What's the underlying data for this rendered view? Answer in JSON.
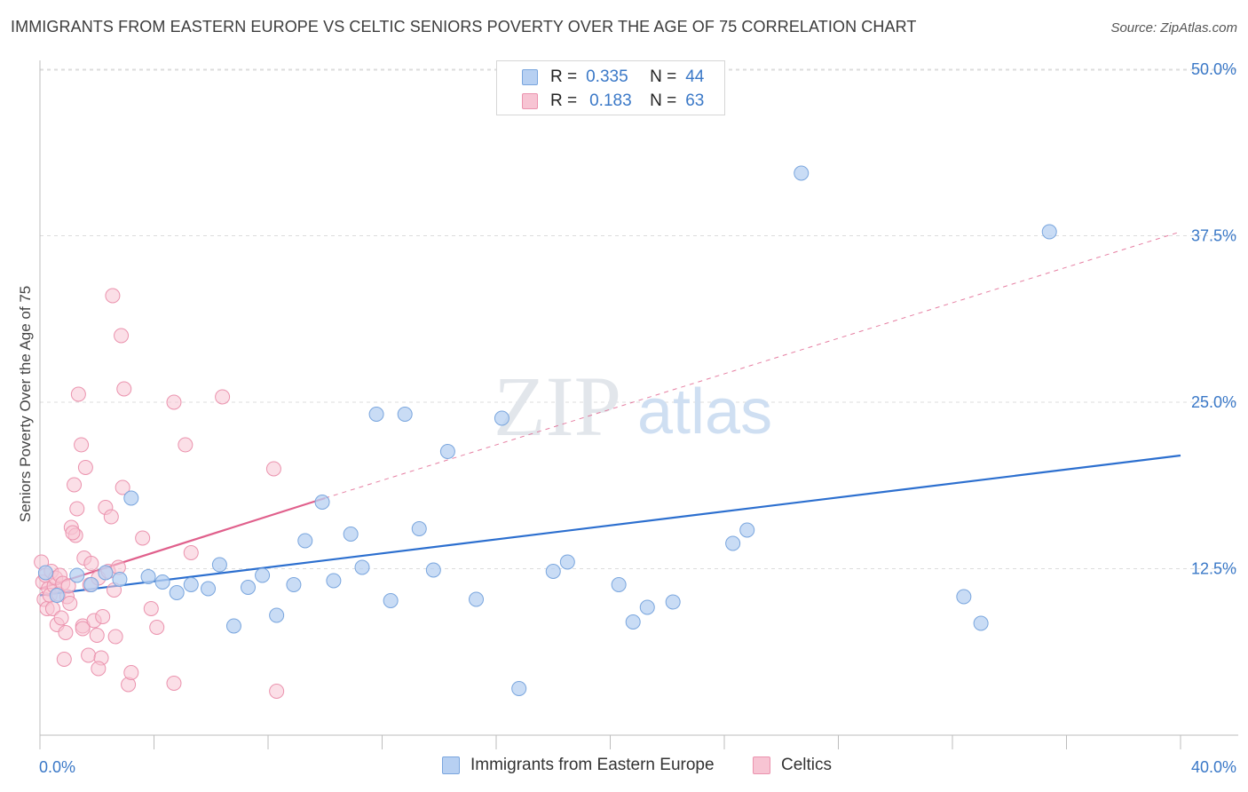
{
  "title": "IMMIGRANTS FROM EASTERN EUROPE VS CELTIC SENIORS POVERTY OVER THE AGE OF 75 CORRELATION CHART",
  "source": "Source: ZipAtlas.com",
  "watermark": {
    "zip": "ZIP",
    "atlas": "atlas"
  },
  "legend": {
    "r_label": "R =",
    "n_label": "N =",
    "rows": [
      {
        "r": "0.335",
        "n": "44"
      },
      {
        "r": "0.183",
        "n": "63"
      }
    ]
  },
  "colors": {
    "blue_fill": "#b7d0f2",
    "blue_stroke": "#7aa6de",
    "blue_line": "#2c6fcf",
    "pink_fill": "#f7c4d3",
    "pink_stroke": "#eb93ae",
    "pink_line": "#e0608c",
    "tick_text": "#3a78c7"
  },
  "chart_data": {
    "type": "scatter",
    "title": "IMMIGRANTS FROM EASTERN EUROPE VS CELTIC SENIORS POVERTY OVER THE AGE OF 75 CORRELATION CHART",
    "xlabel": "",
    "ylabel": "Seniors Poverty Over the Age of 75",
    "xlim": [
      0,
      40
    ],
    "ylim": [
      0,
      52
    ],
    "x_tick_labels": {
      "min": "0.0%",
      "max": "40.0%"
    },
    "y_ticks": [
      {
        "value": 12.5,
        "label": "12.5%"
      },
      {
        "value": 25.0,
        "label": "25.0%"
      },
      {
        "value": 37.5,
        "label": "37.5%"
      },
      {
        "value": 50.0,
        "label": "50.0%"
      }
    ],
    "grid": true,
    "legend_position": "top-center",
    "series": [
      {
        "name": "Immigrants from Eastern Europe",
        "color": "blue",
        "R": 0.335,
        "N": 44,
        "trend": {
          "x0": 0,
          "y0": 10.5,
          "x1": 40,
          "y1": 21.0
        },
        "points": [
          [
            0.2,
            12.2
          ],
          [
            0.6,
            10.5
          ],
          [
            1.3,
            12.0
          ],
          [
            1.8,
            11.3
          ],
          [
            2.3,
            12.2
          ],
          [
            2.8,
            11.7
          ],
          [
            3.2,
            17.8
          ],
          [
            3.8,
            11.9
          ],
          [
            4.3,
            11.5
          ],
          [
            4.8,
            10.7
          ],
          [
            5.3,
            11.3
          ],
          [
            5.9,
            11.0
          ],
          [
            6.3,
            12.8
          ],
          [
            6.8,
            8.2
          ],
          [
            7.3,
            11.1
          ],
          [
            7.8,
            12.0
          ],
          [
            8.3,
            9.0
          ],
          [
            8.9,
            11.3
          ],
          [
            9.3,
            14.6
          ],
          [
            9.9,
            17.5
          ],
          [
            10.3,
            11.6
          ],
          [
            10.9,
            15.1
          ],
          [
            11.3,
            12.6
          ],
          [
            11.8,
            24.1
          ],
          [
            12.3,
            10.1
          ],
          [
            12.8,
            24.1
          ],
          [
            13.3,
            15.5
          ],
          [
            13.8,
            12.4
          ],
          [
            14.3,
            21.3
          ],
          [
            15.3,
            10.2
          ],
          [
            16.2,
            23.8
          ],
          [
            16.8,
            3.5
          ],
          [
            18.0,
            12.3
          ],
          [
            18.5,
            13.0
          ],
          [
            20.3,
            11.3
          ],
          [
            20.8,
            8.5
          ],
          [
            21.3,
            9.6
          ],
          [
            22.2,
            10.0
          ],
          [
            24.3,
            14.4
          ],
          [
            24.8,
            15.4
          ],
          [
            26.7,
            42.2
          ],
          [
            32.4,
            10.4
          ],
          [
            33.0,
            8.4
          ],
          [
            35.4,
            37.8
          ]
        ]
      },
      {
        "name": "Celtics",
        "color": "pink",
        "R": 0.183,
        "N": 63,
        "trend_solid": {
          "x0": 0,
          "y0": 11.0,
          "x1": 10.0,
          "y1": 17.8
        },
        "trend_dashed": {
          "x0": 10.0,
          "y0": 17.8,
          "x1": 40,
          "y1": 37.8
        },
        "points": [
          [
            0.05,
            13.0
          ],
          [
            0.1,
            11.5
          ],
          [
            0.15,
            10.2
          ],
          [
            0.2,
            12.0
          ],
          [
            0.25,
            9.5
          ],
          [
            0.3,
            11.0
          ],
          [
            0.35,
            10.5
          ],
          [
            0.4,
            12.3
          ],
          [
            0.45,
            9.5
          ],
          [
            0.5,
            11.2
          ],
          [
            0.55,
            11.8
          ],
          [
            0.6,
            8.3
          ],
          [
            0.65,
            10.6
          ],
          [
            0.7,
            12.0
          ],
          [
            0.75,
            8.8
          ],
          [
            0.8,
            11.4
          ],
          [
            0.85,
            5.7
          ],
          [
            0.9,
            7.7
          ],
          [
            0.95,
            10.4
          ],
          [
            1.0,
            11.2
          ],
          [
            1.05,
            9.9
          ],
          [
            1.1,
            15.6
          ],
          [
            1.2,
            18.8
          ],
          [
            1.25,
            15.0
          ],
          [
            1.3,
            17.0
          ],
          [
            1.35,
            25.6
          ],
          [
            1.45,
            21.8
          ],
          [
            1.5,
            8.2
          ],
          [
            1.55,
            13.3
          ],
          [
            1.6,
            20.1
          ],
          [
            1.7,
            6.0
          ],
          [
            1.75,
            11.3
          ],
          [
            1.8,
            12.9
          ],
          [
            1.9,
            8.6
          ],
          [
            2.0,
            7.5
          ],
          [
            2.05,
            11.8
          ],
          [
            2.15,
            5.8
          ],
          [
            2.2,
            8.9
          ],
          [
            2.3,
            17.1
          ],
          [
            2.4,
            12.3
          ],
          [
            2.5,
            16.4
          ],
          [
            2.55,
            33.0
          ],
          [
            2.6,
            10.9
          ],
          [
            2.65,
            7.4
          ],
          [
            2.75,
            12.6
          ],
          [
            2.85,
            30.0
          ],
          [
            2.9,
            18.6
          ],
          [
            2.95,
            26.0
          ],
          [
            3.1,
            3.8
          ],
          [
            3.2,
            4.7
          ],
          [
            3.6,
            14.8
          ],
          [
            3.9,
            9.5
          ],
          [
            4.1,
            8.1
          ],
          [
            4.7,
            25.0
          ],
          [
            5.1,
            21.8
          ],
          [
            5.3,
            13.7
          ],
          [
            6.4,
            25.4
          ],
          [
            8.2,
            20.0
          ],
          [
            8.3,
            3.3
          ],
          [
            1.5,
            8.0
          ],
          [
            2.05,
            5.0
          ],
          [
            4.7,
            3.9
          ],
          [
            1.15,
            15.2
          ]
        ]
      }
    ]
  },
  "bottom_legend": [
    {
      "label": "Immigrants from Eastern Europe"
    },
    {
      "label": "Celtics"
    }
  ]
}
